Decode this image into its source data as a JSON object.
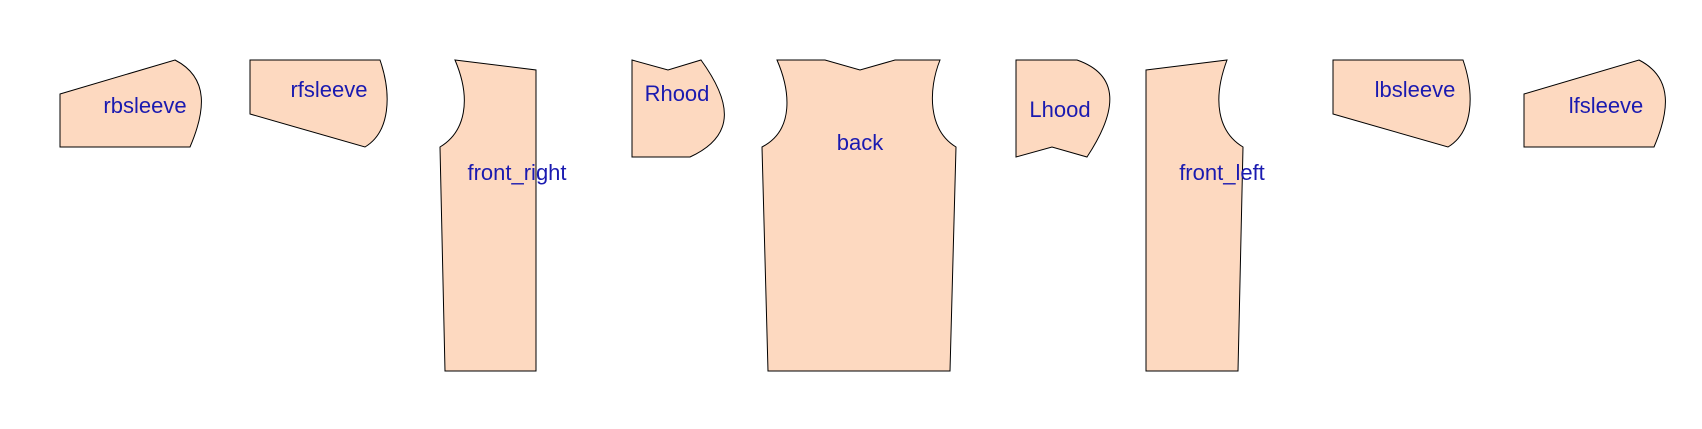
{
  "colors": {
    "piece_fill": "#fdd9c0",
    "piece_outline": "#000000",
    "label_color": "#1a1ab0",
    "background": "#ffffff"
  },
  "pieces": [
    {
      "id": "rbsleeve",
      "label": "rbsleeve"
    },
    {
      "id": "rfsleeve",
      "label": "rfsleeve"
    },
    {
      "id": "front_right",
      "label": "front_right"
    },
    {
      "id": "rhood",
      "label": "Rhood"
    },
    {
      "id": "back",
      "label": "back"
    },
    {
      "id": "lhood",
      "label": "Lhood"
    },
    {
      "id": "front_left",
      "label": "front_left"
    },
    {
      "id": "lbsleeve",
      "label": "lbsleeve"
    },
    {
      "id": "lfsleeve",
      "label": "lfsleeve"
    }
  ]
}
